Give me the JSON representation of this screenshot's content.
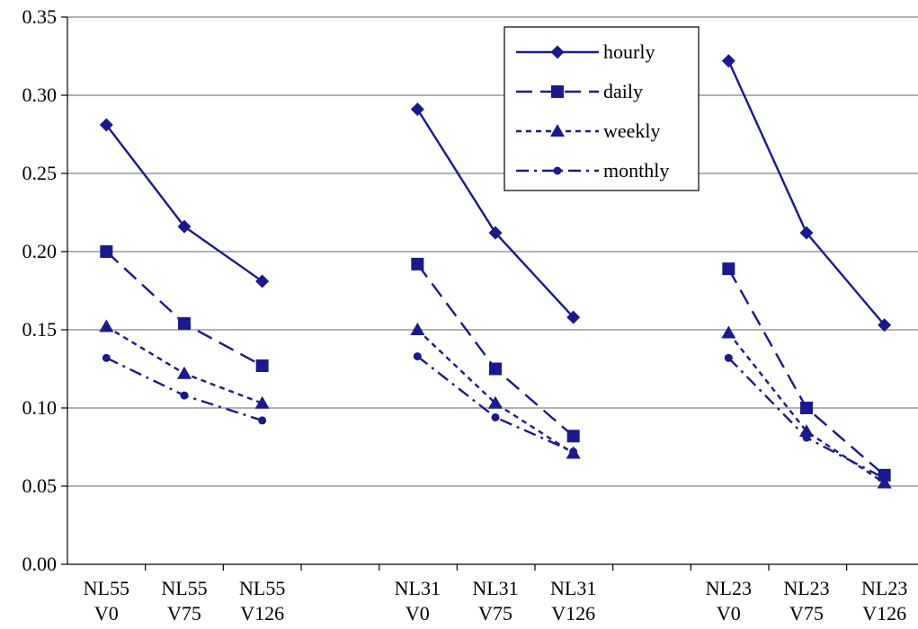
{
  "chart_data": {
    "type": "line",
    "title": "",
    "xlabel": "",
    "ylabel": "",
    "ylim": [
      0,
      0.35
    ],
    "y_ticks": [
      "0.00",
      "0.05",
      "0.10",
      "0.15",
      "0.20",
      "0.25",
      "0.30",
      "0.35"
    ],
    "grid": "horizontal",
    "legend_position": "top-right",
    "groups": [
      {
        "categories": [
          {
            "line1": "NL55",
            "line2": "V0"
          },
          {
            "line1": "NL55",
            "line2": "V75"
          },
          {
            "line1": "NL55",
            "line2": "V126"
          }
        ]
      },
      {
        "categories": [
          {
            "line1": "NL31",
            "line2": "V0"
          },
          {
            "line1": "NL31",
            "line2": "V75"
          },
          {
            "line1": "NL31",
            "line2": "V126"
          }
        ]
      },
      {
        "categories": [
          {
            "line1": "NL23",
            "line2": "V0"
          },
          {
            "line1": "NL23",
            "line2": "V75"
          },
          {
            "line1": "NL23",
            "line2": "V126"
          }
        ]
      }
    ],
    "series": [
      {
        "name": "hourly",
        "marker": "diamond",
        "dash": "solid",
        "values": [
          [
            0.281,
            0.216,
            0.181
          ],
          [
            0.291,
            0.212,
            0.158
          ],
          [
            0.322,
            0.212,
            0.153
          ]
        ]
      },
      {
        "name": "daily",
        "marker": "square",
        "dash": "long-dash",
        "values": [
          [
            0.2,
            0.154,
            0.127
          ],
          [
            0.192,
            0.125,
            0.082
          ],
          [
            0.189,
            0.1,
            0.057
          ]
        ]
      },
      {
        "name": "weekly",
        "marker": "triangle",
        "dash": "short-dash",
        "values": [
          [
            0.152,
            0.122,
            0.103
          ],
          [
            0.15,
            0.103,
            0.071
          ],
          [
            0.148,
            0.085,
            0.052
          ]
        ]
      },
      {
        "name": "monthly",
        "marker": "circle",
        "dash": "dash-dot",
        "values": [
          [
            0.132,
            0.108,
            0.092
          ],
          [
            0.133,
            0.094,
            0.072
          ],
          [
            0.132,
            0.081,
            0.055
          ]
        ]
      }
    ],
    "colors": {
      "series": "#1a1a8c",
      "grid": "#999999",
      "axis": "#000000"
    }
  }
}
